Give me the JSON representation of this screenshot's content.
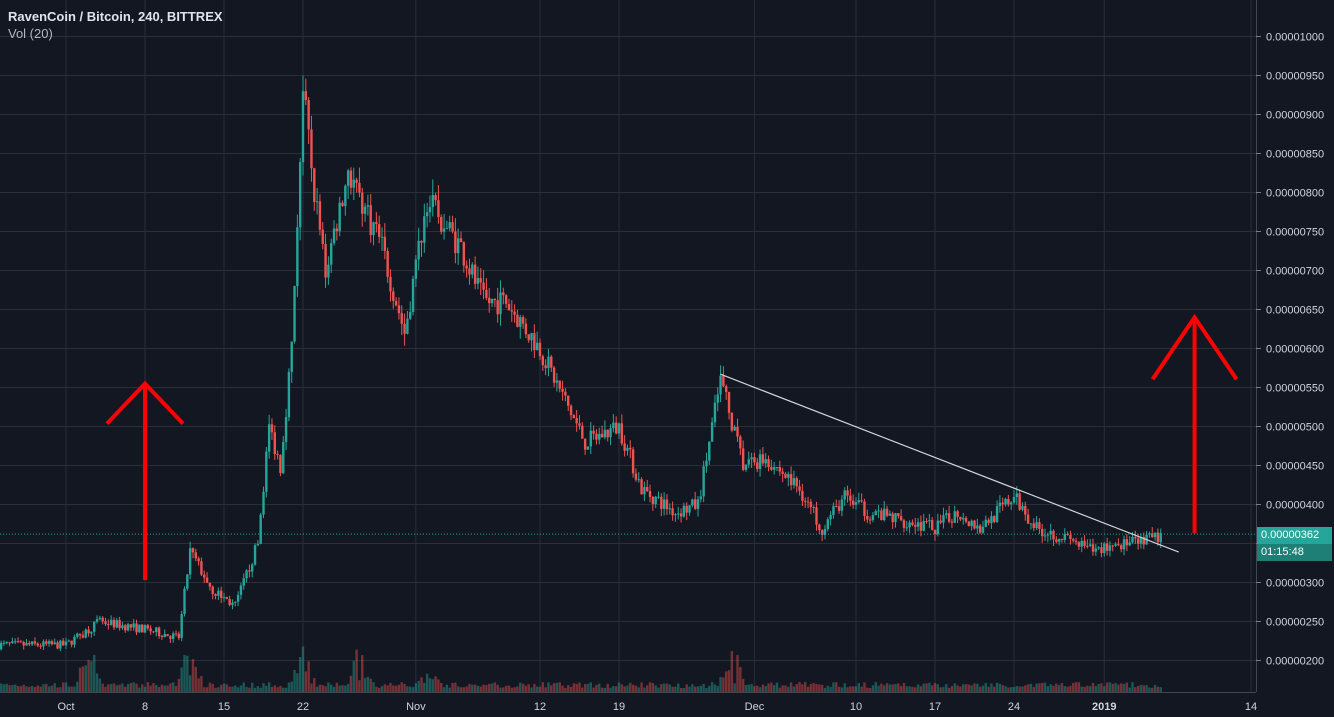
{
  "header": {
    "symbol_line": "RavenCoin / Bitcoin, 240, BITTREX",
    "indicator_line": "Vol (20)"
  },
  "price_axis": {
    "ticks": [
      "0.00001000",
      "0.00000950",
      "0.00000900",
      "0.00000850",
      "0.00000800",
      "0.00000750",
      "0.00000700",
      "0.00000650",
      "0.00000600",
      "0.00000550",
      "0.00000500",
      "0.00000450",
      "0.00000400",
      "0.00000350",
      "0.00000300",
      "0.00000250",
      "0.00000200"
    ]
  },
  "time_axis": {
    "ticks": [
      {
        "label": "Oct",
        "bold": false
      },
      {
        "label": "8",
        "bold": false
      },
      {
        "label": "15",
        "bold": false
      },
      {
        "label": "22",
        "bold": false
      },
      {
        "label": "Nov",
        "bold": false
      },
      {
        "label": "12",
        "bold": false
      },
      {
        "label": "19",
        "bold": false
      },
      {
        "label": "Dec",
        "bold": false
      },
      {
        "label": "10",
        "bold": false
      },
      {
        "label": "17",
        "bold": false
      },
      {
        "label": "24",
        "bold": false
      },
      {
        "label": "2019",
        "bold": true
      },
      {
        "label": "14",
        "bold": false
      }
    ]
  },
  "current_price": {
    "value": "0.00000362",
    "countdown": "01:15:48"
  },
  "colors": {
    "background": "#131722",
    "grid": "#2a2e39",
    "up": "#26a69a",
    "down": "#ef5350",
    "axis_text": "#d1d4dc",
    "trendline": "#d1d4dc",
    "arrow": "#ff0000"
  },
  "chart_data": {
    "type": "candlestick",
    "title": "RavenCoin / Bitcoin, 240, BITTREX",
    "interval": "240",
    "ylim": [
      1.7e-06,
      1.01e-05
    ],
    "price_trend": {
      "dates": [
        "Oct 1",
        "Oct 4",
        "Oct 8",
        "Oct 11",
        "Oct 12",
        "Oct 14",
        "Oct 16",
        "Oct 18",
        "Oct 19",
        "Oct 20",
        "Oct 21",
        "Oct 22",
        "Oct 23",
        "Oct 24",
        "Oct 26",
        "Oct 29",
        "Oct 31",
        "Nov 2",
        "Nov 5",
        "Nov 7",
        "Nov 9",
        "Nov 12",
        "Nov 14",
        "Nov 16",
        "Nov 19",
        "Nov 21",
        "Nov 24",
        "Nov 26",
        "Nov 28",
        "Nov 30",
        "Dec 2",
        "Dec 5",
        "Dec 7",
        "Dec 9",
        "Dec 11",
        "Dec 14",
        "Dec 17",
        "Dec 19",
        "Dec 21",
        "Dec 24",
        "Dec 26",
        "Dec 28",
        "Dec 31",
        "Jan 2",
        "Jan 4",
        "Jan 6"
      ],
      "close": [
        2.2e-06,
        2.5e-06,
        2.4e-06,
        2.3e-06,
        3.4e-06,
        2.9e-06,
        2.7e-06,
        3.5e-06,
        5e-06,
        4.5e-06,
        6e-06,
        9.3e-06,
        8e-06,
        7e-06,
        8.3e-06,
        7.3e-06,
        6.2e-06,
        7.9e-06,
        7.3e-06,
        6.6e-06,
        6.6e-06,
        6e-06,
        5.4e-06,
        4.8e-06,
        5e-06,
        4.2e-06,
        3.9e-06,
        4e-06,
        5.6e-06,
        4.5e-06,
        4.6e-06,
        4.2e-06,
        3.7e-06,
        4.1e-06,
        3.9e-06,
        3.8e-06,
        3.7e-06,
        3.9e-06,
        3.7e-06,
        4.1e-06,
        3.7e-06,
        3.6e-06,
        3.4e-06,
        3.5e-06,
        3.5e-06,
        3.6e-06
      ]
    },
    "volume_trend": {
      "peaks": [
        "Oct 3",
        "Oct 12",
        "Oct 22",
        "Oct 27",
        "Nov 2",
        "Nov 29"
      ]
    },
    "current_price": 3.62e-06,
    "trendline": {
      "from": {
        "date": "Nov 28",
        "price": 5.67e-06
      },
      "to": {
        "date": "Jan 6",
        "price": 3.39e-06
      }
    },
    "annotations": [
      {
        "type": "up-arrow",
        "date": "Oct 8",
        "from_price": 3.03e-06,
        "to_price": 5.55e-06
      },
      {
        "type": "up-arrow",
        "date": "Jan 9",
        "from_price": 3.63e-06,
        "to_price": 6.4e-06
      }
    ],
    "grid": true,
    "legend": "top-left"
  }
}
